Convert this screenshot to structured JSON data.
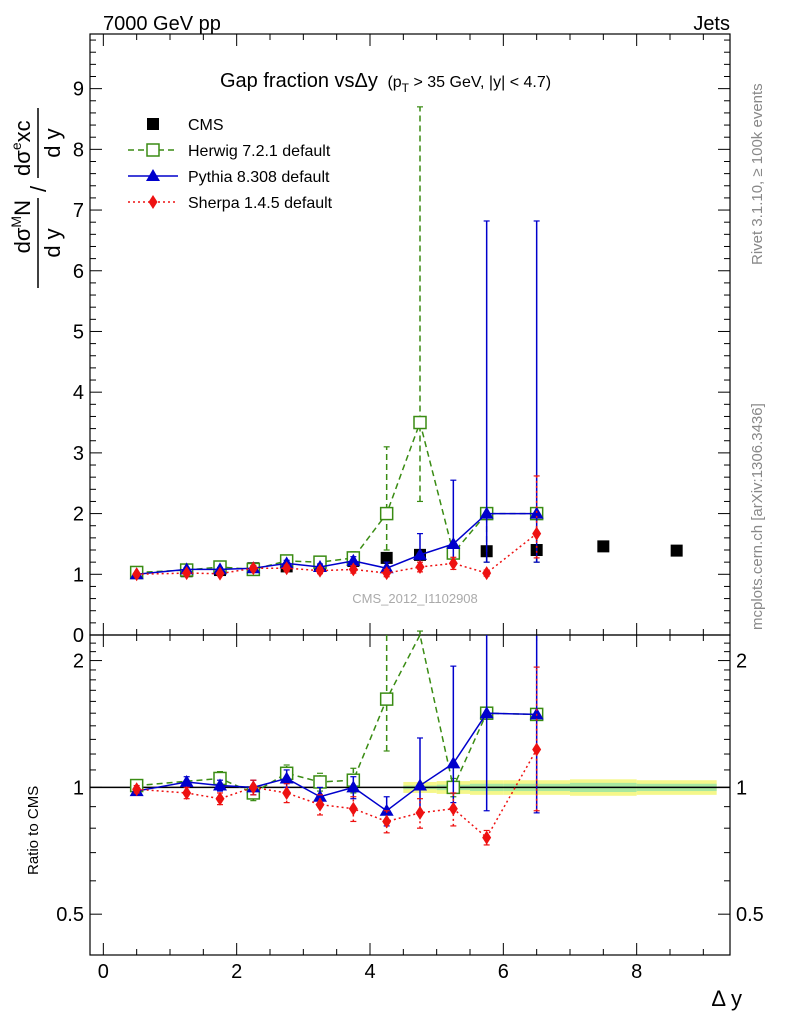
{
  "header": {
    "left": "7000 GeV pp",
    "right": "Jets",
    "rivet": "Rivet 3.1.10, ≥ 100k events",
    "mcplots": "mcplots.cern.ch [arXiv:1306.3436]",
    "analysis": "CMS_2012_I1102908"
  },
  "title": {
    "main": "Gap fraction vsΔy",
    "sub_p": "(p",
    "sub_T": "T",
    "sub_rest": " > 35 GeV, |y| < 4.7)"
  },
  "ylabel": {
    "num_d": "d",
    "num_sig": "σ",
    "num_sup": "M",
    "num_N": "N",
    "den": "d y",
    "slash": "/",
    "r_num_d": "d",
    "r_num_sig": "σ",
    "r_num_sup": "e",
    "r_num_xc": "xc",
    "r_den": "d y"
  },
  "ratio_ylabel": "Ratio to CMS",
  "xlabel": "Δ y",
  "colors": {
    "cms": "#000000",
    "herwig": "#3a8c13",
    "pythia": "#0000cc",
    "sherpa": "#ee1111",
    "band_outer": "#f5f78a",
    "band_inner": "#a8e8a0"
  },
  "chart_data": [
    {
      "type": "scatter",
      "panel": "main",
      "xlim": [
        -0.2,
        9.4
      ],
      "ylim": [
        0,
        9.9
      ],
      "yticks": [
        0,
        1,
        2,
        3,
        4,
        5,
        6,
        7,
        8,
        9
      ],
      "xticks": [
        0,
        2,
        4,
        6,
        8
      ],
      "legend_position": "top-left",
      "series": [
        {
          "name": "CMS",
          "style": "square-filled",
          "x": [
            0.5,
            1.25,
            1.75,
            2.25,
            2.75,
            3.25,
            3.75,
            4.25,
            4.75,
            5.25,
            5.75,
            6.5,
            7.5,
            8.6
          ],
          "y": [
            1.02,
            1.05,
            1.07,
            1.1,
            1.13,
            1.17,
            1.22,
            1.27,
            1.32,
            1.35,
            1.38,
            1.4,
            1.46,
            1.39
          ]
        },
        {
          "name": "Herwig 7.2.1 default",
          "style": "square-open-dashed",
          "x": [
            0.5,
            1.25,
            1.75,
            2.25,
            2.75,
            3.25,
            3.75,
            4.25,
            4.75,
            5.25,
            5.75,
            6.5
          ],
          "y": [
            1.03,
            1.07,
            1.12,
            1.08,
            1.22,
            1.2,
            1.27,
            2.0,
            3.5,
            1.35,
            2.0,
            2.0
          ],
          "err_lo": [
            0.02,
            0.03,
            0.04,
            0.05,
            0.05,
            0.06,
            0.08,
            0.6,
            1.3,
            0.15,
            0.8,
            0.8
          ],
          "err_hi": [
            0.02,
            0.03,
            0.04,
            0.05,
            0.05,
            0.06,
            0.1,
            1.1,
            5.2,
            0.15,
            0.0,
            0.0
          ]
        },
        {
          "name": "Pythia 8.308 default",
          "style": "triangle-solid",
          "x": [
            0.5,
            1.25,
            1.75,
            2.25,
            2.75,
            3.25,
            3.75,
            4.25,
            4.75,
            5.25,
            5.75,
            6.5
          ],
          "y": [
            1.0,
            1.08,
            1.08,
            1.1,
            1.18,
            1.12,
            1.22,
            1.1,
            1.32,
            1.5,
            2.0,
            2.0
          ],
          "err_lo": [
            0.02,
            0.03,
            0.03,
            0.04,
            0.05,
            0.05,
            0.07,
            0.1,
            0.2,
            0.3,
            0.8,
            0.8
          ],
          "err_hi": [
            0.02,
            0.03,
            0.03,
            0.04,
            0.05,
            0.05,
            0.07,
            0.1,
            0.35,
            1.05,
            4.82,
            4.82
          ]
        },
        {
          "name": "Sherpa 1.4.5 default",
          "style": "diamond-dotted",
          "x": [
            0.5,
            1.25,
            1.75,
            2.25,
            2.75,
            3.25,
            3.75,
            4.25,
            4.75,
            5.25,
            5.75,
            6.5
          ],
          "y": [
            1.0,
            1.02,
            1.01,
            1.1,
            1.1,
            1.06,
            1.08,
            1.02,
            1.12,
            1.18,
            1.02,
            1.67
          ],
          "err_lo": [
            0.02,
            0.03,
            0.03,
            0.04,
            0.05,
            0.05,
            0.06,
            0.06,
            0.08,
            0.1,
            0.05,
            0.4
          ],
          "err_hi": [
            0.02,
            0.03,
            0.03,
            0.04,
            0.05,
            0.05,
            0.06,
            0.06,
            0.08,
            0.1,
            0.05,
            0.95
          ]
        }
      ]
    },
    {
      "type": "scatter",
      "panel": "ratio",
      "xlim": [
        -0.2,
        9.4
      ],
      "ylim": [
        0.4,
        2.3
      ],
      "log_scale": true,
      "yticks": [
        0.5,
        1,
        2
      ],
      "xticks": [
        0,
        2,
        4,
        6,
        8
      ],
      "band": {
        "x_edges": [
          4.5,
          5.0,
          5.5,
          6.0,
          7.0,
          8.0,
          9.2
        ],
        "outer_lo": [
          0.97,
          0.965,
          0.96,
          0.96,
          0.955,
          0.96
        ],
        "outer_hi": [
          1.03,
          1.035,
          1.04,
          1.04,
          1.045,
          1.04
        ],
        "inner_lo": [
          0.99,
          0.985,
          0.98,
          0.98,
          0.975,
          0.98
        ],
        "inner_hi": [
          1.01,
          1.015,
          1.02,
          1.02,
          1.025,
          1.02
        ]
      },
      "series": [
        {
          "name": "Herwig 7.2.1 default",
          "x": [
            0.5,
            1.75,
            2.25,
            2.75,
            3.25,
            3.75,
            4.25,
            4.75,
            5.25,
            5.75,
            6.5
          ],
          "y": [
            1.01,
            1.05,
            0.97,
            1.08,
            1.03,
            1.04,
            1.62,
            2.35,
            1.0,
            1.5,
            1.49
          ],
          "err_lo": [
            0.02,
            0.04,
            0.04,
            0.05,
            0.05,
            0.07,
            0.4,
            0.0,
            0.05,
            0.0,
            0.0
          ],
          "err_hi": [
            0.02,
            0.04,
            0.04,
            0.05,
            0.05,
            0.07,
            0.7,
            0.0,
            0.05,
            0.0,
            0.0
          ]
        },
        {
          "name": "Pythia 8.308 default",
          "x": [
            0.5,
            1.25,
            1.75,
            2.25,
            2.75,
            3.25,
            3.75,
            4.25,
            4.75,
            5.25,
            5.75,
            6.5
          ],
          "y": [
            0.98,
            1.03,
            1.01,
            1.0,
            1.05,
            0.95,
            1.0,
            0.88,
            1.01,
            1.14,
            1.5,
            1.49
          ],
          "err_lo": [
            0.02,
            0.03,
            0.03,
            0.04,
            0.05,
            0.05,
            0.06,
            0.07,
            0.14,
            0.22,
            0.62,
            0.62
          ],
          "err_hi": [
            0.02,
            0.03,
            0.03,
            0.04,
            0.05,
            0.05,
            0.06,
            0.07,
            0.3,
            0.8,
            0.8,
            0.8
          ]
        },
        {
          "name": "Sherpa 1.4.5 default",
          "x": [
            0.5,
            1.25,
            1.75,
            2.25,
            2.75,
            3.25,
            3.75,
            4.25,
            4.75,
            5.25,
            5.75,
            6.5
          ],
          "y": [
            0.99,
            0.97,
            0.94,
            1.0,
            0.97,
            0.91,
            0.89,
            0.83,
            0.87,
            0.89,
            0.76,
            1.23
          ],
          "err_lo": [
            0.02,
            0.03,
            0.03,
            0.04,
            0.05,
            0.05,
            0.06,
            0.05,
            0.07,
            0.08,
            0.03,
            0.35
          ],
          "err_hi": [
            0.02,
            0.03,
            0.03,
            0.04,
            0.05,
            0.05,
            0.06,
            0.05,
            0.07,
            0.08,
            0.03,
            0.7
          ]
        }
      ]
    }
  ]
}
